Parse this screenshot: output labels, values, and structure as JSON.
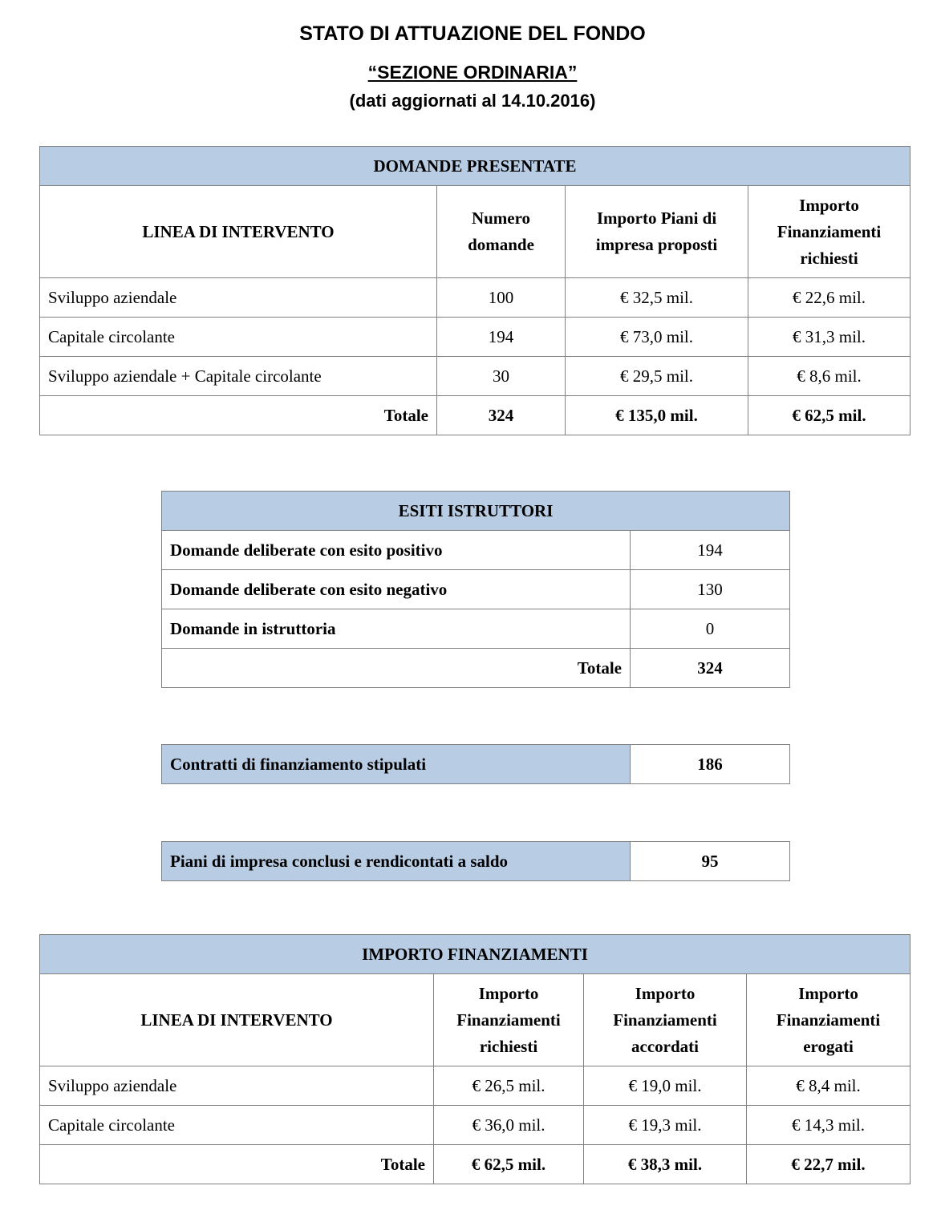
{
  "title": "STATO DI ATTUAZIONE DEL FONDO",
  "subtitle": "“SEZIONE ORDINARIA”",
  "date_note": "(dati aggiornati al 14.10.2016)",
  "header_color": "#b8cce4",
  "domande": {
    "title": "DOMANDE PRESENTATE",
    "columns": [
      "LINEA DI INTERVENTO",
      "Numero domande",
      "Importo Piani di impresa proposti",
      "Importo Finanziamenti richiesti"
    ],
    "rows": [
      [
        "Sviluppo aziendale",
        "100",
        "€ 32,5 mil.",
        "€ 22,6 mil."
      ],
      [
        "Capitale circolante",
        "194",
        "€ 73,0 mil.",
        "€ 31,3 mil."
      ],
      [
        "Sviluppo aziendale + Capitale circolante",
        "30",
        "€ 29,5 mil.",
        "€ 8,6 mil."
      ]
    ],
    "total": [
      "Totale",
      "324",
      "€ 135,0 mil.",
      "€ 62,5 mil."
    ]
  },
  "esiti": {
    "title": "ESITI ISTRUTTORI",
    "rows": [
      [
        "Domande deliberate con esito positivo",
        "194"
      ],
      [
        "Domande deliberate con esito negativo",
        "130"
      ],
      [
        "Domande in istruttoria",
        "0"
      ]
    ],
    "total": [
      "Totale",
      "324"
    ]
  },
  "contratti": {
    "label": "Contratti di finanziamento stipulati",
    "value": "186"
  },
  "piani": {
    "label": "Piani di impresa conclusi e rendicontati a saldo",
    "value": "95"
  },
  "importo": {
    "title": "IMPORTO FINANZIAMENTI",
    "columns": [
      "LINEA DI INTERVENTO",
      "Importo Finanziamenti richiesti",
      "Importo Finanziamenti accordati",
      "Importo Finanziamenti erogati"
    ],
    "rows": [
      [
        "Sviluppo aziendale",
        "€ 26,5 mil.",
        "€ 19,0 mil.",
        "€ 8,4 mil."
      ],
      [
        "Capitale circolante",
        "€ 36,0 mil.",
        "€ 19,3 mil.",
        "€ 14,3 mil."
      ]
    ],
    "total": [
      "Totale",
      "€ 62,5 mil.",
      "€ 38,3 mil.",
      "€ 22,7 mil."
    ]
  }
}
